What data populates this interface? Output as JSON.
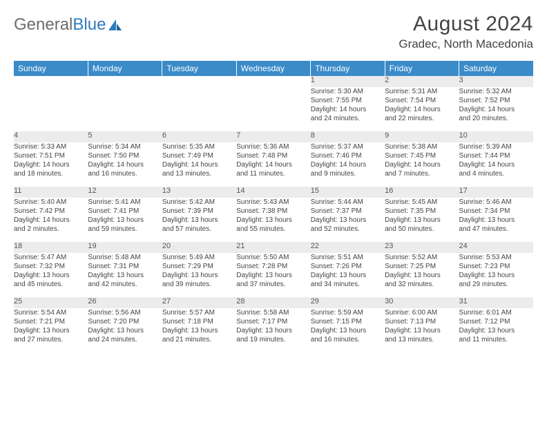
{
  "brand": {
    "part1": "General",
    "part2": "Blue"
  },
  "title": "August 2024",
  "location": "Gradec, North Macedonia",
  "day_headers": [
    "Sunday",
    "Monday",
    "Tuesday",
    "Wednesday",
    "Thursday",
    "Friday",
    "Saturday"
  ],
  "colors": {
    "header_bg": "#3b8bc9",
    "header_text": "#ffffff",
    "daynum_bg": "#ececec",
    "rule": "#2f7bbf",
    "text": "#444444",
    "logo_gray": "#6b6b6b",
    "logo_blue": "#2f7bbf"
  },
  "weeks": [
    [
      null,
      null,
      null,
      null,
      {
        "n": "1",
        "sr": "Sunrise: 5:30 AM",
        "ss": "Sunset: 7:55 PM",
        "d1": "Daylight: 14 hours",
        "d2": "and 24 minutes."
      },
      {
        "n": "2",
        "sr": "Sunrise: 5:31 AM",
        "ss": "Sunset: 7:54 PM",
        "d1": "Daylight: 14 hours",
        "d2": "and 22 minutes."
      },
      {
        "n": "3",
        "sr": "Sunrise: 5:32 AM",
        "ss": "Sunset: 7:52 PM",
        "d1": "Daylight: 14 hours",
        "d2": "and 20 minutes."
      }
    ],
    [
      {
        "n": "4",
        "sr": "Sunrise: 5:33 AM",
        "ss": "Sunset: 7:51 PM",
        "d1": "Daylight: 14 hours",
        "d2": "and 18 minutes."
      },
      {
        "n": "5",
        "sr": "Sunrise: 5:34 AM",
        "ss": "Sunset: 7:50 PM",
        "d1": "Daylight: 14 hours",
        "d2": "and 16 minutes."
      },
      {
        "n": "6",
        "sr": "Sunrise: 5:35 AM",
        "ss": "Sunset: 7:49 PM",
        "d1": "Daylight: 14 hours",
        "d2": "and 13 minutes."
      },
      {
        "n": "7",
        "sr": "Sunrise: 5:36 AM",
        "ss": "Sunset: 7:48 PM",
        "d1": "Daylight: 14 hours",
        "d2": "and 11 minutes."
      },
      {
        "n": "8",
        "sr": "Sunrise: 5:37 AM",
        "ss": "Sunset: 7:46 PM",
        "d1": "Daylight: 14 hours",
        "d2": "and 9 minutes."
      },
      {
        "n": "9",
        "sr": "Sunrise: 5:38 AM",
        "ss": "Sunset: 7:45 PM",
        "d1": "Daylight: 14 hours",
        "d2": "and 7 minutes."
      },
      {
        "n": "10",
        "sr": "Sunrise: 5:39 AM",
        "ss": "Sunset: 7:44 PM",
        "d1": "Daylight: 14 hours",
        "d2": "and 4 minutes."
      }
    ],
    [
      {
        "n": "11",
        "sr": "Sunrise: 5:40 AM",
        "ss": "Sunset: 7:42 PM",
        "d1": "Daylight: 14 hours",
        "d2": "and 2 minutes."
      },
      {
        "n": "12",
        "sr": "Sunrise: 5:41 AM",
        "ss": "Sunset: 7:41 PM",
        "d1": "Daylight: 13 hours",
        "d2": "and 59 minutes."
      },
      {
        "n": "13",
        "sr": "Sunrise: 5:42 AM",
        "ss": "Sunset: 7:39 PM",
        "d1": "Daylight: 13 hours",
        "d2": "and 57 minutes."
      },
      {
        "n": "14",
        "sr": "Sunrise: 5:43 AM",
        "ss": "Sunset: 7:38 PM",
        "d1": "Daylight: 13 hours",
        "d2": "and 55 minutes."
      },
      {
        "n": "15",
        "sr": "Sunrise: 5:44 AM",
        "ss": "Sunset: 7:37 PM",
        "d1": "Daylight: 13 hours",
        "d2": "and 52 minutes."
      },
      {
        "n": "16",
        "sr": "Sunrise: 5:45 AM",
        "ss": "Sunset: 7:35 PM",
        "d1": "Daylight: 13 hours",
        "d2": "and 50 minutes."
      },
      {
        "n": "17",
        "sr": "Sunrise: 5:46 AM",
        "ss": "Sunset: 7:34 PM",
        "d1": "Daylight: 13 hours",
        "d2": "and 47 minutes."
      }
    ],
    [
      {
        "n": "18",
        "sr": "Sunrise: 5:47 AM",
        "ss": "Sunset: 7:32 PM",
        "d1": "Daylight: 13 hours",
        "d2": "and 45 minutes."
      },
      {
        "n": "19",
        "sr": "Sunrise: 5:48 AM",
        "ss": "Sunset: 7:31 PM",
        "d1": "Daylight: 13 hours",
        "d2": "and 42 minutes."
      },
      {
        "n": "20",
        "sr": "Sunrise: 5:49 AM",
        "ss": "Sunset: 7:29 PM",
        "d1": "Daylight: 13 hours",
        "d2": "and 39 minutes."
      },
      {
        "n": "21",
        "sr": "Sunrise: 5:50 AM",
        "ss": "Sunset: 7:28 PM",
        "d1": "Daylight: 13 hours",
        "d2": "and 37 minutes."
      },
      {
        "n": "22",
        "sr": "Sunrise: 5:51 AM",
        "ss": "Sunset: 7:26 PM",
        "d1": "Daylight: 13 hours",
        "d2": "and 34 minutes."
      },
      {
        "n": "23",
        "sr": "Sunrise: 5:52 AM",
        "ss": "Sunset: 7:25 PM",
        "d1": "Daylight: 13 hours",
        "d2": "and 32 minutes."
      },
      {
        "n": "24",
        "sr": "Sunrise: 5:53 AM",
        "ss": "Sunset: 7:23 PM",
        "d1": "Daylight: 13 hours",
        "d2": "and 29 minutes."
      }
    ],
    [
      {
        "n": "25",
        "sr": "Sunrise: 5:54 AM",
        "ss": "Sunset: 7:21 PM",
        "d1": "Daylight: 13 hours",
        "d2": "and 27 minutes."
      },
      {
        "n": "26",
        "sr": "Sunrise: 5:56 AM",
        "ss": "Sunset: 7:20 PM",
        "d1": "Daylight: 13 hours",
        "d2": "and 24 minutes."
      },
      {
        "n": "27",
        "sr": "Sunrise: 5:57 AM",
        "ss": "Sunset: 7:18 PM",
        "d1": "Daylight: 13 hours",
        "d2": "and 21 minutes."
      },
      {
        "n": "28",
        "sr": "Sunrise: 5:58 AM",
        "ss": "Sunset: 7:17 PM",
        "d1": "Daylight: 13 hours",
        "d2": "and 19 minutes."
      },
      {
        "n": "29",
        "sr": "Sunrise: 5:59 AM",
        "ss": "Sunset: 7:15 PM",
        "d1": "Daylight: 13 hours",
        "d2": "and 16 minutes."
      },
      {
        "n": "30",
        "sr": "Sunrise: 6:00 AM",
        "ss": "Sunset: 7:13 PM",
        "d1": "Daylight: 13 hours",
        "d2": "and 13 minutes."
      },
      {
        "n": "31",
        "sr": "Sunrise: 6:01 AM",
        "ss": "Sunset: 7:12 PM",
        "d1": "Daylight: 13 hours",
        "d2": "and 11 minutes."
      }
    ]
  ]
}
